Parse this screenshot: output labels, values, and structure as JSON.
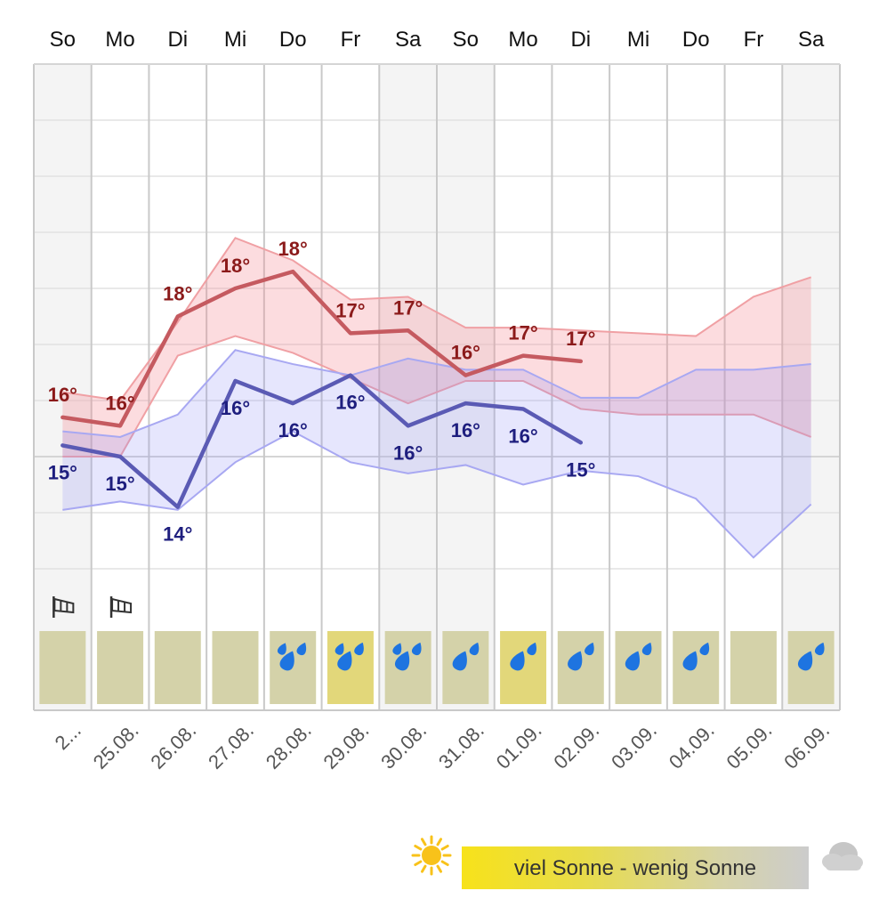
{
  "chart_data": {
    "type": "line",
    "days": [
      {
        "weekday": "So",
        "date": "2...",
        "sunshine": "low",
        "rain": 0,
        "wind": true
      },
      {
        "weekday": "Mo",
        "date": "25.08.",
        "sunshine": "low",
        "rain": 0,
        "wind": true
      },
      {
        "weekday": "Di",
        "date": "26.08.",
        "sunshine": "low",
        "rain": 0,
        "wind": false
      },
      {
        "weekday": "Mi",
        "date": "27.08.",
        "sunshine": "low",
        "rain": 0,
        "wind": false
      },
      {
        "weekday": "Do",
        "date": "28.08.",
        "sunshine": "low",
        "rain": 2,
        "wind": false
      },
      {
        "weekday": "Fr",
        "date": "29.08.",
        "sunshine": "high",
        "rain": 2,
        "wind": false
      },
      {
        "weekday": "Sa",
        "date": "30.08.",
        "sunshine": "low",
        "rain": 2,
        "wind": false
      },
      {
        "weekday": "So",
        "date": "31.08.",
        "sunshine": "low",
        "rain": 1,
        "wind": false
      },
      {
        "weekday": "Mo",
        "date": "01.09.",
        "sunshine": "high",
        "rain": 1,
        "wind": false
      },
      {
        "weekday": "Di",
        "date": "02.09.",
        "sunshine": "low",
        "rain": 1,
        "wind": false
      },
      {
        "weekday": "Mi",
        "date": "03.09.",
        "sunshine": "low",
        "rain": 1,
        "wind": false
      },
      {
        "weekday": "Do",
        "date": "04.09.",
        "sunshine": "low",
        "rain": 1,
        "wind": false
      },
      {
        "weekday": "Fr",
        "date": "05.09.",
        "sunshine": "low",
        "rain": 0,
        "wind": false
      },
      {
        "weekday": "Sa",
        "date": "06.09.",
        "sunshine": "low",
        "rain": 1,
        "wind": false
      }
    ],
    "y_axis": {
      "min": 12,
      "max": 22,
      "gridlines": true
    },
    "series": [
      {
        "role": "max",
        "color": "#c55a60",
        "values": [
          15.7,
          15.55,
          17.5,
          18.0,
          18.3,
          17.2,
          17.25,
          16.45,
          16.8,
          16.7,
          null,
          null,
          null,
          null
        ],
        "labels": [
          "16°",
          "16°",
          "18°",
          "18°",
          "18°",
          "17°",
          "17°",
          "16°",
          "17°",
          "17°",
          "",
          "",
          "",
          ""
        ],
        "band_upper": [
          16.15,
          16.0,
          17.4,
          18.9,
          18.5,
          17.8,
          17.85,
          17.3,
          17.3,
          17.25,
          17.2,
          17.15,
          17.85,
          18.2
        ],
        "band_lower": [
          15.0,
          15.0,
          16.8,
          17.15,
          16.85,
          16.4,
          15.95,
          16.35,
          16.35,
          15.85,
          15.75,
          15.75,
          15.75,
          15.35
        ]
      },
      {
        "role": "min",
        "color": "#5a5ab4",
        "values": [
          15.2,
          15.0,
          14.1,
          16.35,
          15.95,
          16.45,
          15.55,
          15.95,
          15.85,
          15.25,
          null,
          null,
          null,
          null
        ],
        "labels": [
          "15°",
          "15°",
          "14°",
          "16°",
          "16°",
          "16°",
          "16°",
          "16°",
          "16°",
          "15°",
          "",
          "",
          "",
          ""
        ],
        "band_upper": [
          15.45,
          15.35,
          15.75,
          16.9,
          16.65,
          16.45,
          16.75,
          16.55,
          16.55,
          16.05,
          16.05,
          16.55,
          16.55,
          16.65
        ],
        "band_lower": [
          14.05,
          14.2,
          14.05,
          14.9,
          15.45,
          14.9,
          14.7,
          14.85,
          14.5,
          14.75,
          14.65,
          14.25,
          13.2,
          14.15
        ]
      }
    ],
    "colors": {
      "sunny": "#e2d77a",
      "cloudy": "#d4d2a9",
      "rain_drop": "#1e74e0",
      "weekend_bg": "#f4f4f4"
    }
  },
  "legend": {
    "text": "viel Sonne - wenig Sonne",
    "sun_icon": "sun-icon",
    "cloud_icon": "cloud-icon"
  }
}
